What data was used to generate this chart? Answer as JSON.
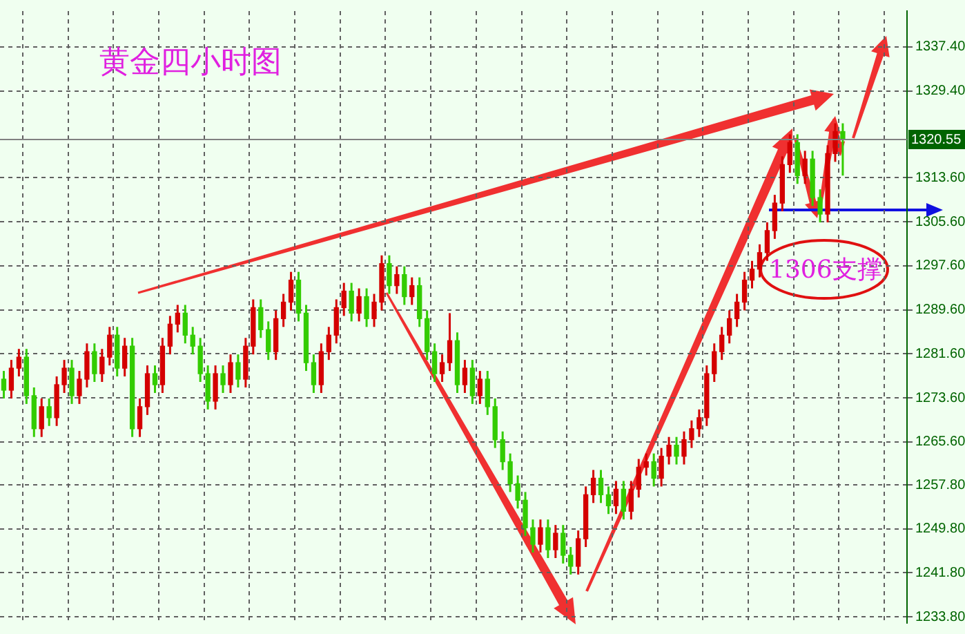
{
  "chart_data": {
    "type": "candlestick",
    "title": "黄金四小时图",
    "categories": [
      null,
      null,
      null,
      null,
      null,
      null,
      null,
      null,
      null,
      null,
      null,
      null,
      null,
      null,
      null,
      null,
      null,
      null,
      null,
      null,
      null,
      null,
      null,
      null,
      null,
      null,
      null,
      null,
      null,
      null,
      null,
      null,
      null,
      null,
      null,
      null,
      null,
      null,
      null,
      null,
      null,
      null,
      null,
      null,
      null,
      null,
      null,
      null,
      null,
      null,
      null,
      null,
      null,
      null,
      null,
      null,
      null,
      null,
      null,
      null,
      null,
      null,
      null,
      null,
      null,
      null,
      null,
      null,
      null,
      null,
      null,
      null,
      null,
      null,
      null,
      null,
      null,
      null,
      null,
      null,
      null,
      null,
      null,
      null,
      null,
      null,
      null,
      null,
      null,
      null,
      null,
      null,
      null,
      null,
      null,
      null,
      null,
      null,
      null,
      null,
      null,
      null,
      null,
      null,
      null,
      null,
      null,
      null,
      null,
      null,
      null,
      null,
      null,
      null,
      null,
      null,
      null,
      null,
      null,
      null
    ],
    "ohlc": [
      [
        1277,
        1278.5,
        1273.5,
        1275
      ],
      [
        1275,
        1280.5,
        1273.5,
        1279
      ],
      [
        1279,
        1282.5,
        1277.5,
        1281
      ],
      [
        1281,
        1282.5,
        1272.5,
        1274
      ],
      [
        1274,
        1275.5,
        1266.5,
        1268
      ],
      [
        1268,
        1273.5,
        1266.5,
        1272
      ],
      [
        1272,
        1273.5,
        1268.5,
        1270
      ],
      [
        1270,
        1277.5,
        1268.5,
        1276
      ],
      [
        1276,
        1280.5,
        1274.5,
        1279
      ],
      [
        1279,
        1280.5,
        1272.5,
        1274
      ],
      [
        1274,
        1278.5,
        1272.5,
        1277
      ],
      [
        1277,
        1283.5,
        1275.5,
        1282
      ],
      [
        1282,
        1283.5,
        1276.5,
        1278
      ],
      [
        1278,
        1282.5,
        1276.5,
        1281
      ],
      [
        1281,
        1286.5,
        1279.5,
        1285
      ],
      [
        1285,
        1286.5,
        1277.5,
        1279
      ],
      [
        1279,
        1284.5,
        1277.5,
        1283
      ],
      [
        1283,
        1284.5,
        1266.5,
        1268
      ],
      [
        1268,
        1273.5,
        1266.5,
        1272
      ],
      [
        1272,
        1279.5,
        1270.5,
        1278
      ],
      [
        1278,
        1279.5,
        1274.5,
        1276
      ],
      [
        1276,
        1284.5,
        1274.5,
        1283
      ],
      [
        1283,
        1288.5,
        1281.5,
        1287
      ],
      [
        1287,
        1290.5,
        1285.5,
        1289
      ],
      [
        1289,
        1290.5,
        1283.5,
        1285
      ],
      [
        1285,
        1286.5,
        1281.5,
        1283
      ],
      [
        1283,
        1284.5,
        1276.5,
        1278
      ],
      [
        1278,
        1279.5,
        1271.5,
        1273
      ],
      [
        1273,
        1279.5,
        1271.5,
        1278
      ],
      [
        1278,
        1279.5,
        1274.5,
        1276
      ],
      [
        1276,
        1281.5,
        1274.5,
        1280
      ],
      [
        1280,
        1281.5,
        1275.5,
        1277
      ],
      [
        1277,
        1284.5,
        1275.5,
        1283
      ],
      [
        1283,
        1291.5,
        1281.5,
        1290
      ],
      [
        1290,
        1291.5,
        1284.5,
        1286
      ],
      [
        1286,
        1287.5,
        1280.5,
        1282
      ],
      [
        1282,
        1289.5,
        1280.5,
        1288
      ],
      [
        1288,
        1292.5,
        1286.5,
        1291
      ],
      [
        1291,
        1296.5,
        1289.5,
        1295
      ],
      [
        1295,
        1296.5,
        1287.5,
        1289
      ],
      [
        1289,
        1290.5,
        1278.5,
        1280
      ],
      [
        1280,
        1281.5,
        1274.5,
        1276
      ],
      [
        1276,
        1283.5,
        1274.5,
        1282
      ],
      [
        1282,
        1286.5,
        1280.5,
        1285
      ],
      [
        1285,
        1291.5,
        1283.5,
        1290
      ],
      [
        1290,
        1294.5,
        1288.5,
        1293
      ],
      [
        1293,
        1294.5,
        1287.5,
        1289
      ],
      [
        1289,
        1293.5,
        1287.5,
        1292
      ],
      [
        1292,
        1293.5,
        1286.5,
        1288
      ],
      [
        1288,
        1292.5,
        1286.5,
        1291
      ],
      [
        1291,
        1299.5,
        1289.5,
        1298
      ],
      [
        1298,
        1299.5,
        1292.5,
        1294
      ],
      [
        1294,
        1297.5,
        1292.5,
        1296
      ],
      [
        1296,
        1297.5,
        1290.5,
        1292
      ],
      [
        1292,
        1295.5,
        1290.5,
        1294
      ],
      [
        1294,
        1295.5,
        1286.5,
        1288
      ],
      [
        1288,
        1289.5,
        1280.5,
        1282
      ],
      [
        1282,
        1283.5,
        1276.5,
        1278
      ],
      [
        1278,
        1281.5,
        1276.5,
        1280
      ],
      [
        1280,
        1289,
        1278.5,
        1284
      ],
      [
        1284,
        1285.5,
        1274.5,
        1276
      ],
      [
        1276,
        1280.5,
        1274.5,
        1279
      ],
      [
        1279,
        1280.5,
        1272.5,
        1274
      ],
      [
        1274,
        1278.5,
        1272.5,
        1277
      ],
      [
        1277,
        1278.5,
        1270.5,
        1272
      ],
      [
        1272,
        1273.5,
        1264.5,
        1266
      ],
      [
        1266,
        1267.5,
        1260.5,
        1262
      ],
      [
        1262,
        1263.5,
        1256.5,
        1258
      ],
      [
        1258,
        1259.5,
        1253.5,
        1255
      ],
      [
        1255,
        1256.5,
        1248.5,
        1250
      ],
      [
        1250,
        1251.5,
        1245.5,
        1247
      ],
      [
        1247,
        1251.5,
        1245.5,
        1250
      ],
      [
        1250,
        1251.5,
        1244.5,
        1246
      ],
      [
        1246,
        1250.5,
        1244.5,
        1249
      ],
      [
        1249,
        1250.5,
        1243.5,
        1245
      ],
      [
        1245,
        1246.5,
        1241.5,
        1243
      ],
      [
        1243,
        1249.5,
        1241.5,
        1248
      ],
      [
        1248,
        1257.5,
        1246.5,
        1256
      ],
      [
        1256,
        1260.5,
        1254.5,
        1259
      ],
      [
        1259,
        1260.5,
        1254.5,
        1256
      ],
      [
        1256,
        1257.5,
        1252.5,
        1254
      ],
      [
        1254,
        1258.5,
        1252.5,
        1257
      ],
      [
        1257,
        1258.5,
        1251.5,
        1253
      ],
      [
        1253,
        1258.5,
        1251.5,
        1257
      ],
      [
        1257,
        1262.5,
        1255.5,
        1261
      ],
      [
        1261,
        1263.5,
        1259.5,
        1262
      ],
      [
        1262,
        1263.5,
        1257.5,
        1259
      ],
      [
        1259,
        1264.5,
        1257.5,
        1263
      ],
      [
        1263,
        1266.5,
        1261.5,
        1265
      ],
      [
        1265,
        1266.5,
        1261.5,
        1263
      ],
      [
        1263,
        1267.5,
        1261.5,
        1266
      ],
      [
        1266,
        1269.5,
        1264.5,
        1268
      ],
      [
        1268,
        1271.5,
        1266.5,
        1270
      ],
      [
        1270,
        1279.5,
        1268.5,
        1278
      ],
      [
        1278,
        1283.5,
        1276.5,
        1282
      ],
      [
        1282,
        1286.5,
        1280.5,
        1285
      ],
      [
        1285,
        1289.5,
        1283.5,
        1288
      ],
      [
        1288,
        1292.5,
        1286.5,
        1291
      ],
      [
        1291,
        1296.5,
        1289.5,
        1295
      ],
      [
        1295,
        1298.5,
        1293.5,
        1297
      ],
      [
        1297,
        1301.5,
        1295.5,
        1300
      ],
      [
        1300,
        1305.5,
        1298.5,
        1304
      ],
      [
        1304,
        1310.5,
        1302.5,
        1309
      ],
      [
        1309,
        1317.5,
        1307.5,
        1316
      ],
      [
        1316,
        1321.5,
        1314.5,
        1320
      ],
      [
        1320,
        1321.5,
        1312.5,
        1314
      ],
      [
        1314,
        1318.5,
        1312.5,
        1317
      ],
      [
        1317,
        1318.5,
        1308.5,
        1310
      ],
      [
        1310,
        1311.5,
        1305.5,
        1307
      ],
      [
        1307,
        1319.5,
        1305.5,
        1318
      ],
      [
        1318,
        1323.5,
        1316.5,
        1322
      ],
      [
        1322,
        1323.5,
        1314,
        1320.55
      ],
      null,
      null,
      null,
      null,
      null,
      null,
      null,
      null
    ],
    "colors": [
      "#33cc00",
      "#d40000",
      "#d40000",
      "#33cc00",
      "#33cc00",
      "#d40000",
      "#33cc00",
      "#d40000",
      "#d40000",
      "#33cc00",
      "#d40000",
      "#d40000",
      "#33cc00",
      "#d40000",
      "#d40000",
      "#33cc00",
      "#d40000",
      "#33cc00",
      "#d40000",
      "#d40000",
      "#33cc00",
      "#d40000",
      "#d40000",
      "#d40000",
      "#33cc00",
      "#33cc00",
      "#33cc00",
      "#33cc00",
      "#d40000",
      "#33cc00",
      "#d40000",
      "#33cc00",
      "#d40000",
      "#d40000",
      "#33cc00",
      "#33cc00",
      "#d40000",
      "#d40000",
      "#d40000",
      "#33cc00",
      "#33cc00",
      "#33cc00",
      "#d40000",
      "#d40000",
      "#d40000",
      "#d40000",
      "#33cc00",
      "#d40000",
      "#33cc00",
      "#d40000",
      "#d40000",
      "#33cc00",
      "#d40000",
      "#33cc00",
      "#d40000",
      "#33cc00",
      "#33cc00",
      "#33cc00",
      "#d40000",
      "#d40000",
      "#33cc00",
      "#d40000",
      "#33cc00",
      "#d40000",
      "#33cc00",
      "#33cc00",
      "#33cc00",
      "#33cc00",
      "#33cc00",
      "#33cc00",
      "#33cc00",
      "#d40000",
      "#33cc00",
      "#d40000",
      "#33cc00",
      "#33cc00",
      "#d40000",
      "#d40000",
      "#d40000",
      "#33cc00",
      "#33cc00",
      "#d40000",
      "#33cc00",
      "#d40000",
      "#d40000",
      "#d40000",
      "#33cc00",
      "#d40000",
      "#d40000",
      "#33cc00",
      "#d40000",
      "#d40000",
      "#d40000",
      "#d40000",
      "#d40000",
      "#d40000",
      "#d40000",
      "#d40000",
      "#d40000",
      "#d40000",
      "#d40000",
      "#d40000",
      "#d40000",
      "#d40000",
      "#d40000",
      "#33cc00",
      "#d40000",
      "#33cc00",
      "#33cc00",
      "#d40000",
      "#d40000",
      "#33cc00",
      null,
      null,
      null,
      null,
      null,
      null,
      null,
      null
    ],
    "ylim": [
      1232.7,
      1343.9
    ],
    "yticks": [
      {
        "value": 1233.8,
        "label": "1233.80"
      },
      {
        "value": 1241.8,
        "label": "1241.80"
      },
      {
        "value": 1249.8,
        "label": "1249.80"
      },
      {
        "value": 1257.8,
        "label": "1257.80"
      },
      {
        "value": 1265.6,
        "label": "1265.60"
      },
      {
        "value": 1273.6,
        "label": "1273.60"
      },
      {
        "value": 1281.6,
        "label": "1281.60"
      },
      {
        "value": 1289.6,
        "label": "1289.60"
      },
      {
        "value": 1297.6,
        "label": "1297.60"
      },
      {
        "value": 1305.6,
        "label": "1305.60"
      },
      {
        "value": 1313.6,
        "label": "1313.60"
      },
      {
        "value": 1329.4,
        "label": "1329.40"
      },
      {
        "value": 1337.4,
        "label": "1337.40"
      }
    ],
    "ref_lines": [
      {
        "axis": "y",
        "value": 1320.55,
        "label": "1320.55",
        "color": "#808080"
      }
    ],
    "annotations": [
      "1306支撑"
    ],
    "grid": true,
    "legend": false,
    "tick_labels": "y"
  }
}
